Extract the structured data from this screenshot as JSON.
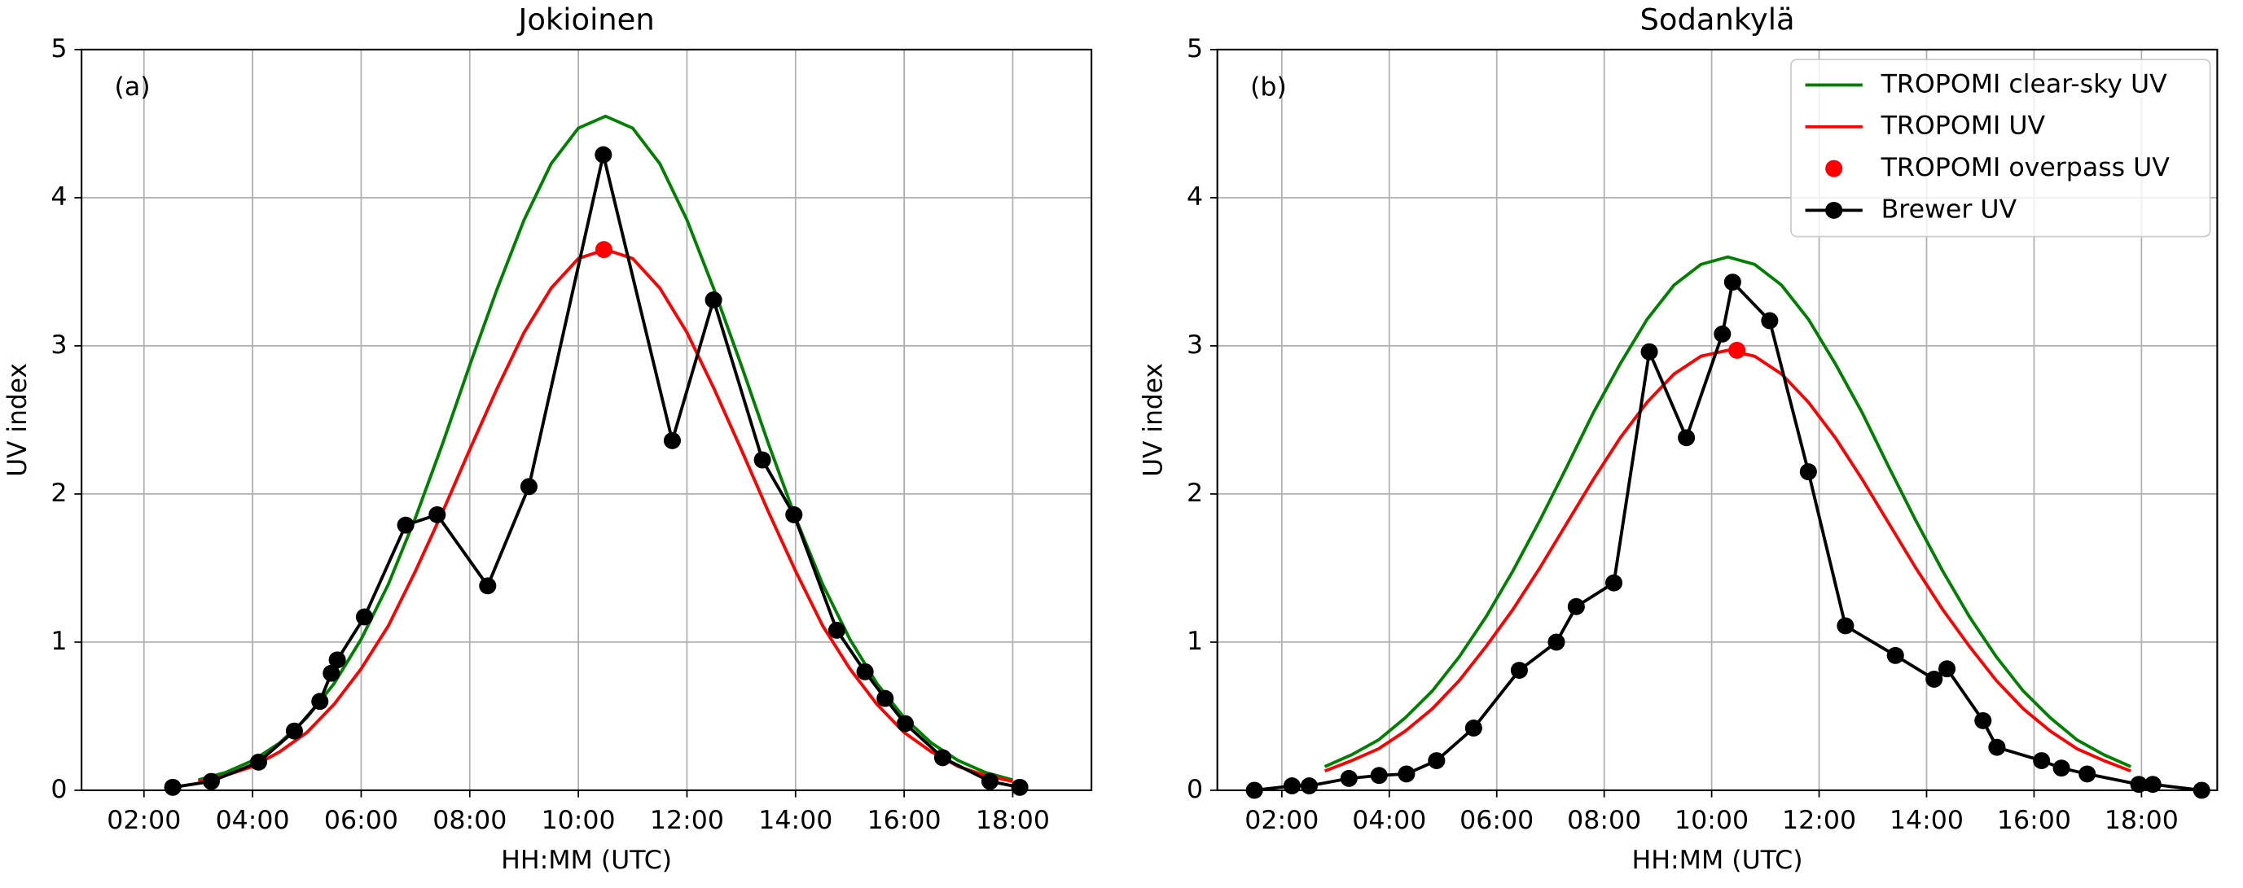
{
  "chart_data": [
    {
      "type": "line",
      "title": "Jokioinen",
      "panel_label": "(a)",
      "xlabel": "HH:MM (UTC)",
      "ylabel": "UV index",
      "xlim": [
        0.85,
        19.45
      ],
      "ylim": [
        0,
        5
      ],
      "grid": true,
      "xticks": [
        {
          "value": 2,
          "label": "02:00"
        },
        {
          "value": 4,
          "label": "04:00"
        },
        {
          "value": 6,
          "label": "06:00"
        },
        {
          "value": 8,
          "label": "08:00"
        },
        {
          "value": 10,
          "label": "10:00"
        },
        {
          "value": 12,
          "label": "12:00"
        },
        {
          "value": 14,
          "label": "14:00"
        },
        {
          "value": 16,
          "label": "16:00"
        },
        {
          "value": 18,
          "label": "18:00"
        }
      ],
      "yticks": [
        0,
        1,
        2,
        3,
        4,
        5
      ],
      "series": [
        {
          "style": "line",
          "color": "#008000",
          "x": [
            3,
            3.5,
            4,
            4.5,
            5,
            5.5,
            6,
            6.5,
            7,
            7.5,
            8,
            8.5,
            9,
            9.5,
            10,
            10.5,
            11,
            11.5,
            12,
            12.5,
            13,
            13.5,
            14,
            14.5,
            15,
            15.5,
            16,
            16.5,
            17,
            17.5,
            18
          ],
          "values": [
            0.07,
            0.12,
            0.2,
            0.32,
            0.49,
            0.72,
            1.02,
            1.39,
            1.84,
            2.34,
            2.87,
            3.38,
            3.85,
            4.23,
            4.47,
            4.55,
            4.47,
            4.23,
            3.85,
            3.38,
            2.87,
            2.34,
            1.84,
            1.39,
            1.02,
            0.72,
            0.49,
            0.32,
            0.2,
            0.12,
            0.07
          ]
        },
        {
          "style": "line",
          "color": "#ff0000",
          "x": [
            3,
            3.5,
            4,
            4.5,
            5,
            5.5,
            6,
            6.5,
            7,
            7.5,
            8,
            8.5,
            9,
            9.5,
            10,
            10.5,
            11,
            11.5,
            12,
            12.5,
            13,
            13.5,
            14,
            14.5,
            15,
            15.5,
            16,
            16.5,
            17,
            17.5,
            18
          ],
          "values": [
            0.06,
            0.1,
            0.16,
            0.26,
            0.39,
            0.58,
            0.82,
            1.11,
            1.48,
            1.88,
            2.3,
            2.71,
            3.09,
            3.39,
            3.59,
            3.65,
            3.59,
            3.39,
            3.09,
            2.71,
            2.3,
            1.88,
            1.48,
            1.11,
            0.82,
            0.58,
            0.39,
            0.26,
            0.16,
            0.1,
            0.06
          ]
        },
        {
          "style": "marker",
          "color": "#ff0000",
          "x": [
            10.47
          ],
          "values": [
            3.65
          ]
        },
        {
          "style": "line-marker",
          "color": "#000000",
          "x": [
            2.53,
            3.24,
            4.11,
            4.77,
            5.24,
            5.45,
            5.56,
            6.06,
            6.82,
            7.4,
            8.33,
            9.09,
            10.46,
            11.73,
            12.49,
            13.39,
            13.97,
            14.76,
            15.28,
            15.65,
            16.02,
            16.71,
            17.58,
            18.13
          ],
          "values": [
            0.02,
            0.06,
            0.19,
            0.4,
            0.6,
            0.79,
            0.88,
            1.17,
            1.79,
            1.86,
            1.38,
            2.05,
            4.29,
            2.36,
            3.31,
            2.23,
            1.86,
            1.08,
            0.8,
            0.62,
            0.45,
            0.22,
            0.06,
            0.02
          ]
        }
      ]
    },
    {
      "type": "line",
      "title": "Sodankylä",
      "panel_label": "(b)",
      "xlabel": "HH:MM (UTC)",
      "ylabel": "UV index",
      "xlim": [
        0.8,
        19.41
      ],
      "ylim": [
        0,
        5
      ],
      "grid": true,
      "legend": "upper right",
      "xticks": [
        {
          "value": 2,
          "label": "02:00"
        },
        {
          "value": 4,
          "label": "04:00"
        },
        {
          "value": 6,
          "label": "06:00"
        },
        {
          "value": 8,
          "label": "08:00"
        },
        {
          "value": 10,
          "label": "10:00"
        },
        {
          "value": 12,
          "label": "12:00"
        },
        {
          "value": 14,
          "label": "14:00"
        },
        {
          "value": 16,
          "label": "16:00"
        },
        {
          "value": 18,
          "label": "18:00"
        }
      ],
      "yticks": [
        0,
        1,
        2,
        3,
        4,
        5
      ],
      "series": [
        {
          "name": "TROPOMI clear-sky UV",
          "style": "line",
          "color": "#008000",
          "x": [
            2.8,
            3.3,
            3.8,
            4.3,
            4.8,
            5.3,
            5.8,
            6.3,
            6.8,
            7.3,
            7.8,
            8.3,
            8.8,
            9.3,
            9.8,
            10.3,
            10.8,
            11.3,
            11.8,
            12.3,
            12.8,
            13.3,
            13.8,
            14.3,
            14.8,
            15.3,
            15.8,
            16.3,
            16.8,
            17.3,
            17.8
          ],
          "values": [
            0.16,
            0.24,
            0.34,
            0.49,
            0.67,
            0.9,
            1.17,
            1.48,
            1.82,
            2.18,
            2.55,
            2.88,
            3.18,
            3.41,
            3.55,
            3.6,
            3.55,
            3.41,
            3.18,
            2.88,
            2.55,
            2.18,
            1.82,
            1.48,
            1.17,
            0.9,
            0.67,
            0.49,
            0.34,
            0.24,
            0.16
          ]
        },
        {
          "name": "TROPOMI UV",
          "style": "line",
          "color": "#ff0000",
          "x": [
            2.8,
            3.3,
            3.8,
            4.3,
            4.8,
            5.3,
            5.8,
            6.3,
            6.8,
            7.3,
            7.8,
            8.3,
            8.8,
            9.3,
            9.8,
            10.3,
            10.8,
            11.3,
            11.8,
            12.3,
            12.8,
            13.3,
            13.8,
            14.3,
            14.8,
            15.3,
            15.8,
            16.3,
            16.8,
            17.3,
            17.8
          ],
          "values": [
            0.13,
            0.2,
            0.28,
            0.4,
            0.55,
            0.74,
            0.97,
            1.22,
            1.5,
            1.8,
            2.1,
            2.38,
            2.62,
            2.81,
            2.93,
            2.97,
            2.93,
            2.81,
            2.62,
            2.38,
            2.1,
            1.8,
            1.5,
            1.22,
            0.97,
            0.74,
            0.55,
            0.4,
            0.28,
            0.2,
            0.13
          ]
        },
        {
          "name": "TROPOMI overpass UV",
          "style": "marker",
          "color": "#ff0000",
          "x": [
            10.47
          ],
          "values": [
            2.97
          ]
        },
        {
          "name": "Brewer UV",
          "style": "line-marker",
          "color": "#000000",
          "x": [
            1.49,
            2.19,
            2.51,
            3.25,
            3.81,
            4.32,
            4.88,
            5.57,
            6.42,
            7.11,
            7.48,
            8.18,
            8.84,
            9.53,
            10.2,
            10.39,
            11.08,
            11.8,
            12.49,
            13.42,
            14.14,
            14.38,
            15.05,
            15.31,
            16.14,
            16.51,
            16.99,
            17.95,
            18.21,
            19.12
          ],
          "values": [
            0.0,
            0.03,
            0.03,
            0.08,
            0.1,
            0.11,
            0.2,
            0.42,
            0.81,
            1.0,
            1.24,
            1.4,
            2.96,
            2.38,
            3.08,
            3.43,
            3.17,
            2.15,
            1.11,
            0.91,
            0.75,
            0.82,
            0.47,
            0.29,
            0.2,
            0.15,
            0.11,
            0.04,
            0.04,
            0.0
          ]
        }
      ]
    }
  ]
}
